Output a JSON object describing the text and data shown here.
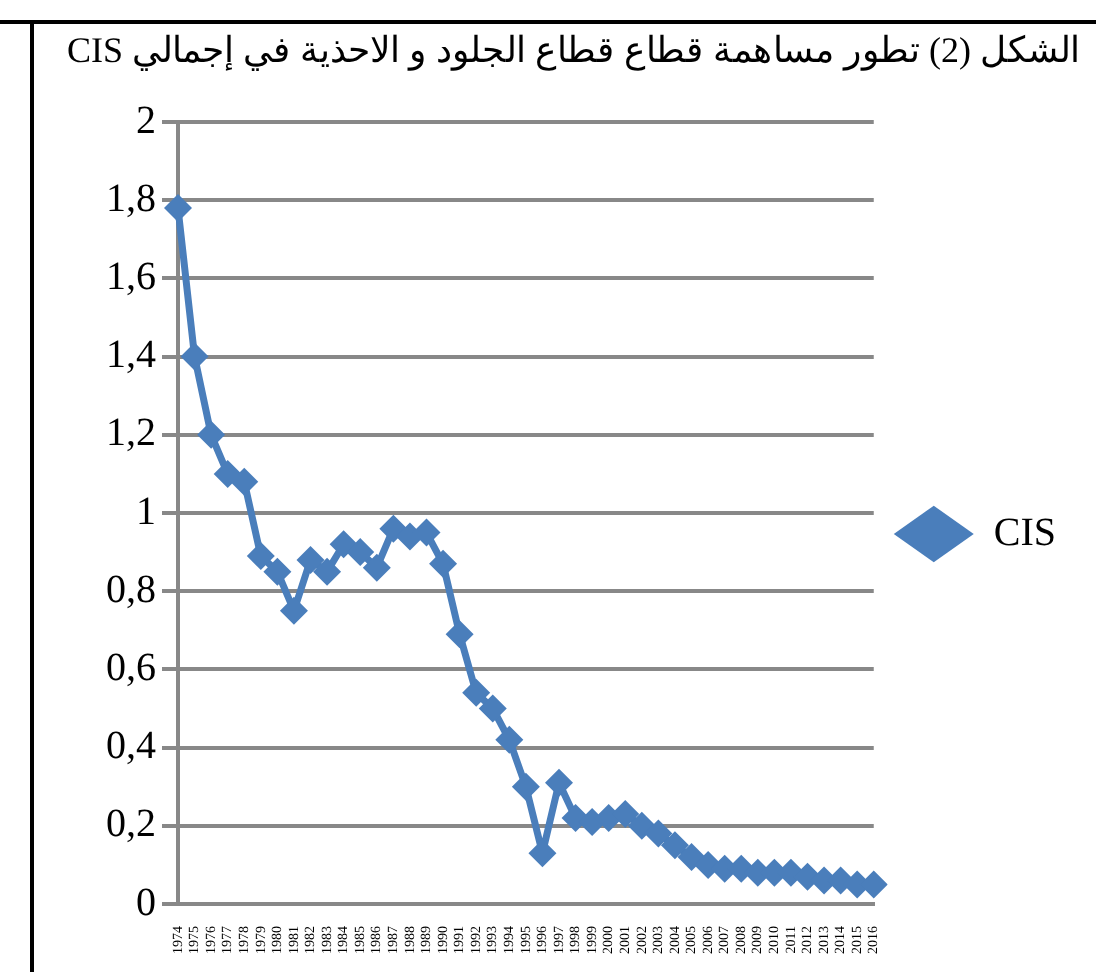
{
  "chart_data": {
    "type": "line",
    "title": "الشكل (2) تطور مساهمة قطاع قطاع الجلود و الاحذية في إجمالي CIS",
    "categories": [
      "1974",
      "1975",
      "1976",
      "1977",
      "1978",
      "1979",
      "1980",
      "1981",
      "1982",
      "1983",
      "1984",
      "1985",
      "1986",
      "1987",
      "1988",
      "1989",
      "1990",
      "1991",
      "1992",
      "1993",
      "1994",
      "1995",
      "1996",
      "1997",
      "1998",
      "1999",
      "2000",
      "2001",
      "2002",
      "2003",
      "2004",
      "2005",
      "2006",
      "2007",
      "2008",
      "2009",
      "2010",
      "2011",
      "2012",
      "2013",
      "2014",
      "2015",
      "2016"
    ],
    "series": [
      {
        "name": "CIS",
        "color": "#4a7ebb",
        "values": [
          1.78,
          1.4,
          1.2,
          1.1,
          1.08,
          0.89,
          0.85,
          0.75,
          0.88,
          0.85,
          0.92,
          0.9,
          0.86,
          0.96,
          0.94,
          0.95,
          0.87,
          0.69,
          0.54,
          0.5,
          0.42,
          0.3,
          0.13,
          0.31,
          0.22,
          0.21,
          0.22,
          0.23,
          0.2,
          0.18,
          0.15,
          0.12,
          0.1,
          0.09,
          0.09,
          0.08,
          0.08,
          0.08,
          0.07,
          0.06,
          0.06,
          0.05,
          0.05
        ]
      }
    ],
    "ylim": [
      0,
      2
    ],
    "yticks": [
      0,
      {
        "value": 0.2,
        "label": "0,2"
      },
      {
        "value": 0.4,
        "label": "0,4"
      },
      {
        "value": 0.6,
        "label": "0,6"
      },
      {
        "value": 0.8,
        "label": "0,8"
      },
      1,
      {
        "value": 1.2,
        "label": "1,2"
      },
      {
        "value": 1.4,
        "label": "1,4"
      },
      {
        "value": 1.6,
        "label": "1,6"
      },
      {
        "value": 1.8,
        "label": "1,8"
      },
      2
    ],
    "grid": "y",
    "legend": "right",
    "marker": "diamond",
    "line_style": "solid"
  }
}
